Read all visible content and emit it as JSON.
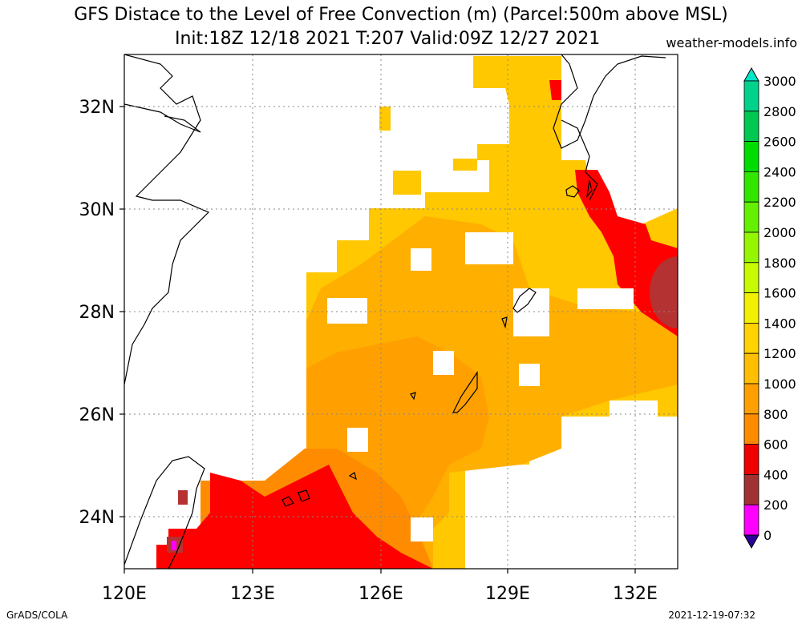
{
  "title_line1": "GFS Distace to the Level of Free Convection (m) (Parcel:500m above MSL)",
  "title_line2": "Init:18Z 12/18 2021 T:207 Valid:09Z 12/27 2021",
  "website": "weather-models.info",
  "footer_left": "GrADS/COLA",
  "footer_right": "2021-12-19-07:32",
  "lon_labels": [
    "120E",
    "123E",
    "126E",
    "129E",
    "132E"
  ],
  "lat_labels": [
    "32N",
    "30N",
    "28N",
    "26N",
    "24N"
  ],
  "colorbar": {
    "labels": [
      "3000",
      "2800",
      "2600",
      "2400",
      "2200",
      "2000",
      "1800",
      "1600",
      "1400",
      "1200",
      "1000",
      "800",
      "600",
      "400",
      "200",
      "0"
    ],
    "colors": [
      "#00e6c8",
      "#00d28c",
      "#00c850",
      "#00dc00",
      "#32e600",
      "#64f000",
      "#96f500",
      "#c8fa00",
      "#f0f000",
      "#ffd200",
      "#ffbe00",
      "#ffa000",
      "#ff8c00",
      "#f00000",
      "#a03232",
      "#ff00ff",
      "#2d0096"
    ]
  },
  "map_colors": {
    "yellow": "#ffc800",
    "light_orange": "#ffaf00",
    "orange": "#ffa000",
    "dark_orange": "#ff8c00",
    "red": "#ff0000",
    "brown": "#b43232",
    "magenta": "#ff00ff"
  }
}
